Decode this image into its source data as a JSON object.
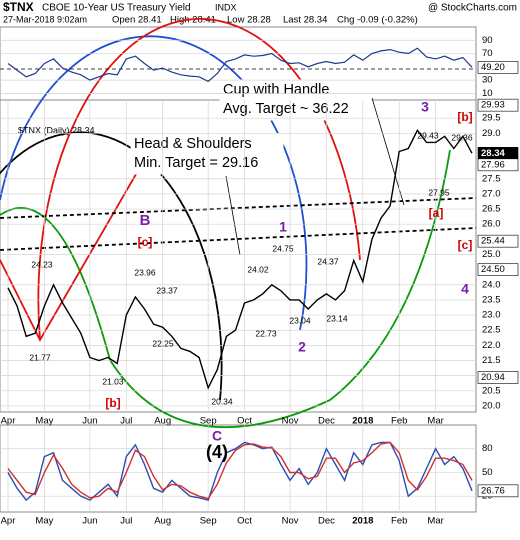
{
  "header": {
    "symbol": "$TNX",
    "name": "CBOE 10-Year US Treasury Yield",
    "exchange": "INDX",
    "source": "@ StockCharts.com",
    "date": "27-Mar-2018 9:02am",
    "open": "Open 28.41",
    "high": "High 28.41",
    "low": "Low 28.28",
    "last": "Last 28.34",
    "change": "Chg -0.09 (-0.32%)",
    "legend": "$TNX (Daily) 28.34"
  },
  "callouts": [
    [
      "Cup with Handle",
      "Avg. Target ~ 36.22"
    ],
    [
      "Head & Shoulders",
      "Min. Target = 29.16"
    ]
  ],
  "annotations": [
    "3",
    "[b]",
    "[a]",
    "[c]",
    "4",
    "1",
    "2",
    "B",
    "[c]",
    "[b]",
    "C",
    "(4)",
    "29.43",
    "29.36",
    "27.95",
    "24.75",
    "24.37",
    "24.02",
    "23.96",
    "24.23",
    "23.37",
    "22.25",
    "21.77",
    "21.03",
    "20.34",
    "22.73",
    "23.04",
    "23.14"
  ],
  "chart_data": [
    {
      "type": "line",
      "panel": "rsi",
      "color": "#1f3a8f",
      "ylim": [
        0,
        110
      ],
      "yticks": [
        10,
        30,
        70,
        90
      ],
      "tags": [
        {
          "value": 49.2,
          "label": "49.20"
        }
      ],
      "values": [
        55,
        45,
        35,
        40,
        55,
        62,
        48,
        42,
        38,
        30,
        35,
        40,
        38,
        62,
        66,
        55,
        45,
        48,
        42,
        38,
        36,
        35,
        28,
        40,
        58,
        62,
        68,
        66,
        67,
        70,
        60,
        55,
        56,
        50,
        55,
        58,
        55,
        57,
        68,
        60,
        70,
        74,
        76,
        72,
        70,
        78,
        65,
        62,
        66,
        60,
        64,
        49.2
      ]
    },
    {
      "type": "line",
      "panel": "price",
      "color": "#000000",
      "ylim": [
        19.8,
        30.1
      ],
      "categories": [
        "Apr",
        null,
        null,
        null,
        "May",
        null,
        null,
        null,
        null,
        "Jun",
        null,
        null,
        null,
        "Jul",
        null,
        null,
        null,
        "Aug",
        null,
        null,
        null,
        null,
        "Sep",
        null,
        null,
        null,
        "Oct",
        null,
        null,
        null,
        null,
        "Nov",
        null,
        null,
        null,
        "Dec",
        null,
        null,
        null,
        "2018",
        null,
        null,
        null,
        "Feb",
        null,
        null,
        null,
        "Mar",
        null,
        null,
        null,
        null
      ],
      "values": [
        23.9,
        23.3,
        22.3,
        22.4,
        23.3,
        24.0,
        23.4,
        22.9,
        22.4,
        21.6,
        21.5,
        21.6,
        21.4,
        23.0,
        23.6,
        23.2,
        22.7,
        22.6,
        22.3,
        21.9,
        21.8,
        21.6,
        20.6,
        21.2,
        22.3,
        22.5,
        23.4,
        23.5,
        23.7,
        24.0,
        23.8,
        23.5,
        23.5,
        23.2,
        23.5,
        23.7,
        23.5,
        23.8,
        24.8,
        24.1,
        25.5,
        26.2,
        26.6,
        28.4,
        28.5,
        29.1,
        28.7,
        28.7,
        28.9,
        28.5,
        28.9,
        28.34
      ],
      "yticks": [
        {
          "value": 20,
          "label": "20.0"
        },
        20.5,
        {
          "value": 21,
          "label": "21.0"
        },
        21.5,
        {
          "value": 22,
          "label": "22.0"
        },
        22.5,
        {
          "value": 23,
          "label": "23.0"
        },
        23.5,
        {
          "value": 24,
          "label": "24.0"
        },
        {
          "value": 25,
          "label": "25.0"
        },
        {
          "value": 26,
          "label": "26.0"
        },
        26.5,
        {
          "value": 27,
          "label": "27.0"
        },
        27.5,
        {
          "value": 29,
          "label": "29.0"
        },
        29.5
      ],
      "tags": [
        {
          "value": 29.93,
          "label": "29.93",
          "color": "#ffffff"
        },
        {
          "value": 28.34,
          "label": "28.34",
          "color": "#000000"
        },
        {
          "value": 27.96,
          "label": "27.96",
          "color": "#ffffff"
        },
        {
          "value": 25.44,
          "label": "25.44",
          "color": "#ffffff"
        },
        {
          "value": 24.5,
          "label": "24.50",
          "color": "#ffffff"
        },
        {
          "value": 20.94,
          "label": "20.94",
          "color": "#ffffff"
        }
      ]
    },
    {
      "type": "line",
      "panel": "stoch",
      "ylim": [
        0,
        110
      ],
      "yticks": [
        20,
        50,
        80
      ],
      "tags": [
        {
          "value": 26.76,
          "label": "26.76"
        }
      ],
      "categories": [
        "Apr",
        null,
        null,
        null,
        "May",
        null,
        null,
        null,
        null,
        "Jun",
        null,
        null,
        null,
        "Jul",
        null,
        null,
        null,
        "Aug",
        null,
        null,
        null,
        null,
        "Sep",
        null,
        null,
        null,
        "Oct",
        null,
        null,
        null,
        null,
        "Nov",
        null,
        null,
        null,
        "Dec",
        null,
        null,
        null,
        "2018",
        null,
        null,
        null,
        "Feb",
        null,
        null,
        null,
        "Mar",
        null,
        null,
        null,
        null
      ],
      "series": [
        {
          "color": "#2b4fb0",
          "values": [
            50,
            30,
            15,
            25,
            70,
            75,
            40,
            30,
            20,
            15,
            25,
            35,
            20,
            70,
            85,
            60,
            30,
            25,
            40,
            30,
            20,
            18,
            15,
            50,
            75,
            80,
            88,
            85,
            80,
            82,
            60,
            40,
            55,
            35,
            50,
            80,
            60,
            40,
            75,
            60,
            85,
            88,
            88,
            65,
            20,
            30,
            55,
            80,
            60,
            70,
            55,
            26.76
          ]
        },
        {
          "color": "#d03030",
          "values": [
            55,
            40,
            25,
            22,
            50,
            72,
            55,
            35,
            25,
            18,
            20,
            30,
            25,
            50,
            78,
            70,
            45,
            28,
            35,
            33,
            25,
            20,
            17,
            35,
            62,
            78,
            85,
            86,
            82,
            81,
            70,
            50,
            50,
            42,
            45,
            68,
            68,
            50,
            62,
            65,
            75,
            86,
            88,
            75,
            40,
            28,
            45,
            68,
            68,
            65,
            60,
            40
          ]
        }
      ]
    }
  ]
}
